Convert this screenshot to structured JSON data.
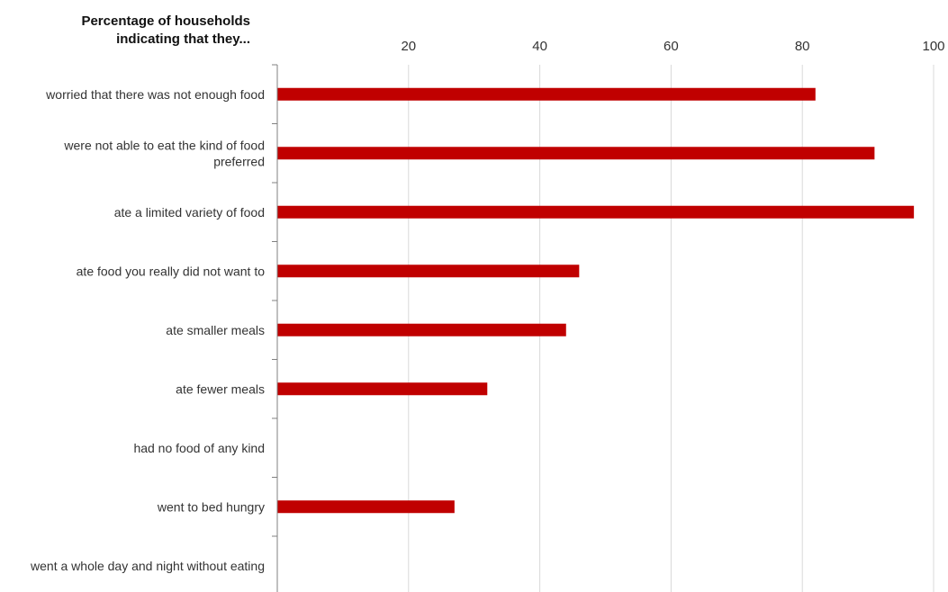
{
  "chart_data": {
    "type": "bar",
    "orientation": "horizontal",
    "title_lines": [
      "Percentage of households",
      "indicating that they..."
    ],
    "categories": [
      "worried that there was not enough food",
      "were not able to eat the kind of food preferred",
      "ate a limited variety of food",
      "ate food you really did not want to",
      "ate smaller meals",
      "ate fewer meals",
      "had no food of any kind",
      "went to bed hungry",
      "went a whole day and night without eating"
    ],
    "category_label_lines": [
      [
        "worried that there was not enough food"
      ],
      [
        "were not able to eat the kind of food",
        "preferred"
      ],
      [
        "ate a limited variety of food"
      ],
      [
        "ate food you really did not want to"
      ],
      [
        "ate smaller meals"
      ],
      [
        "ate fewer meals"
      ],
      [
        "had no food of any kind"
      ],
      [
        "went to bed hungry"
      ],
      [
        "went a whole day and night without eating"
      ]
    ],
    "values": [
      82,
      91,
      97,
      46,
      44,
      32,
      0,
      27,
      0
    ],
    "xlim": [
      0,
      100
    ],
    "x_ticks": [
      20,
      40,
      60,
      80,
      100
    ],
    "x_axis_position": "top",
    "grid": true,
    "legend": "none",
    "bar_color": "#c00000",
    "grid_color": "#d9d9d9",
    "axis_color": "#808080",
    "text_color": "#333333"
  }
}
